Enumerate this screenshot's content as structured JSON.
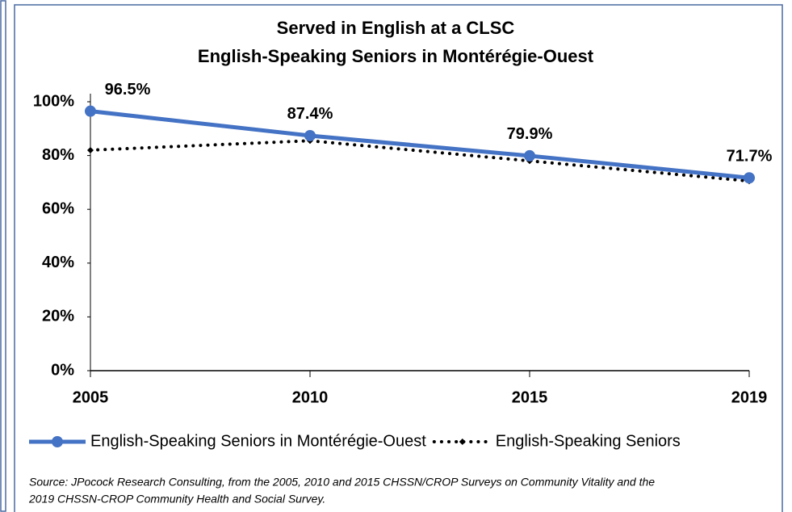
{
  "chart_data": {
    "type": "line",
    "title": [
      "Served in English at a CLSC",
      "English-Speaking Seniors in Montérégie-Ouest"
    ],
    "categories": [
      "2005",
      "2010",
      "2015",
      "2019"
    ],
    "series": [
      {
        "name": "English-Speaking Seniors in Montérégie-Ouest",
        "color": "#4472c4",
        "line_style": "solid",
        "marker": "circle",
        "values": [
          96.5,
          87.4,
          79.9,
          71.7
        ],
        "value_labels": [
          "96.5%",
          "87.4%",
          "79.9%",
          "71.7%"
        ]
      },
      {
        "name": "English-Speaking Seniors",
        "color": "#000000",
        "line_style": "dotted",
        "marker": "diamond",
        "values": [
          82,
          85.5,
          78,
          70.5
        ]
      }
    ],
    "ylim": [
      0,
      100
    ],
    "yticks": [
      {
        "value": 0,
        "label": "0%"
      },
      {
        "value": 20,
        "label": "20%"
      },
      {
        "value": 40,
        "label": "40%"
      },
      {
        "value": 60,
        "label": "60%"
      },
      {
        "value": 80,
        "label": "80%"
      },
      {
        "value": 100,
        "label": "100%"
      }
    ],
    "grid": false,
    "legend": "bottom",
    "source": [
      "Source: JPocock Research Consulting, from the 2005, 2010  and 2015  CHSSN/CROP Surveys on Community Vitality and the",
      "2019  CHSSN-CROP Community Health and Social Survey."
    ]
  }
}
